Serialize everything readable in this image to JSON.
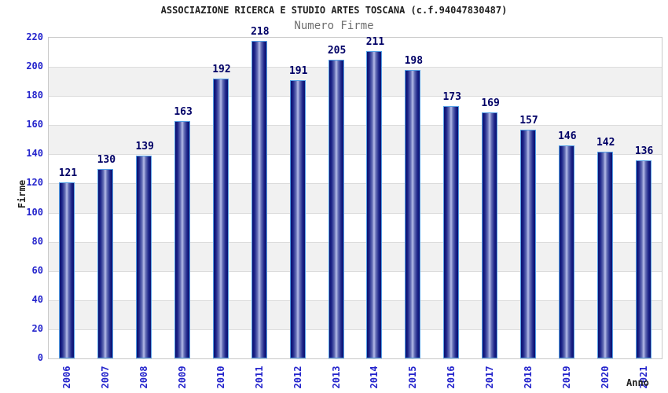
{
  "header": {
    "title": "ASSOCIAZIONE RICERCA E STUDIO ARTES TOSCANA (c.f.94047830487)",
    "subtitle": "Numero Firme"
  },
  "chart_data": {
    "type": "bar",
    "title": "ASSOCIAZIONE RICERCA E STUDIO ARTES TOSCANA (c.f.94047830487)",
    "subtitle": "Numero Firme",
    "xlabel": "Anno",
    "ylabel": "Firme",
    "categories": [
      "2006",
      "2007",
      "2008",
      "2009",
      "2010",
      "2011",
      "2012",
      "2013",
      "2014",
      "2015",
      "2016",
      "2017",
      "2018",
      "2019",
      "2020",
      "2021"
    ],
    "values": [
      121,
      130,
      139,
      163,
      192,
      218,
      191,
      205,
      211,
      198,
      173,
      169,
      157,
      146,
      142,
      136
    ],
    "ylim": [
      0,
      220
    ],
    "yticks": [
      0,
      20,
      40,
      60,
      80,
      100,
      120,
      140,
      160,
      180,
      200,
      220
    ],
    "grid": "horizontal alternating bands, gridline every 20",
    "legend": "none",
    "bar_labels_shown": true,
    "colors": {
      "bar_edge": "#0a1070",
      "bar_mid": "#1c2488",
      "bar_inner": "#6872b8",
      "bar_center": "#b7bee9",
      "bar_border": "#55a0e6",
      "tick_label": "#2424cc",
      "value_label": "#000066",
      "band_gray": "#f1f1f1",
      "gridline": "#dcdcdc",
      "plot_border": "#c9c9c9",
      "title_color": "#1f1f1f",
      "subtitle_color": "#6e6e6e"
    }
  }
}
